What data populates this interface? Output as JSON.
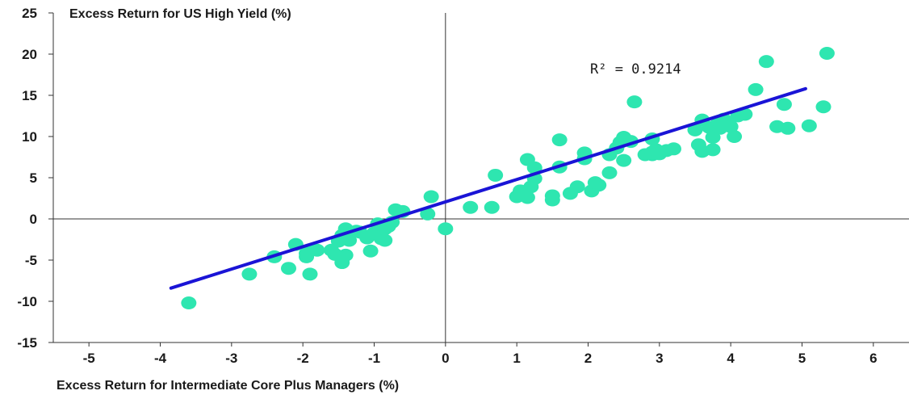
{
  "chart_data": {
    "type": "scatter",
    "title": "",
    "xlabel": "Excess Return for Intermediate Core Plus Managers (%)",
    "ylabel": "Excess Return for US High Yield (%)",
    "xlim": [
      -5.5,
      6.5
    ],
    "ylim": [
      -15,
      25
    ],
    "x_ticks": [
      -5,
      -4,
      -3,
      -2,
      -1,
      0,
      1,
      2,
      3,
      4,
      5,
      6
    ],
    "y_ticks": [
      25,
      20,
      15,
      10,
      5,
      0,
      -5,
      -10,
      -15
    ],
    "annotation": "R² = 0.9214",
    "colors": {
      "points": "#2ee6b0",
      "trendline": "#1a14d6",
      "axis": "#333333"
    },
    "trendline": {
      "x": [
        -3.85,
        5.05
      ],
      "y": [
        -8.4,
        15.8
      ]
    },
    "points": [
      [
        -3.6,
        -10.2
      ],
      [
        -2.75,
        -6.7
      ],
      [
        -2.4,
        -4.6
      ],
      [
        -2.2,
        -6.0
      ],
      [
        -2.1,
        -3.1
      ],
      [
        -1.95,
        -4.6
      ],
      [
        -1.9,
        -6.7
      ],
      [
        -1.9,
        -3.8
      ],
      [
        -1.8,
        -3.8
      ],
      [
        -1.95,
        -4.2
      ],
      [
        -1.6,
        -3.8
      ],
      [
        -1.55,
        -4.3
      ],
      [
        -1.5,
        -2.7
      ],
      [
        -1.45,
        -2.0
      ],
      [
        -1.4,
        -1.2
      ],
      [
        -1.4,
        -4.4
      ],
      [
        -1.45,
        -5.3
      ],
      [
        -1.35,
        -2.6
      ],
      [
        -1.25,
        -1.5
      ],
      [
        -1.2,
        -1.6
      ],
      [
        -1.1,
        -2.3
      ],
      [
        -1.05,
        -3.9
      ],
      [
        -1.0,
        -1.7
      ],
      [
        -0.95,
        -0.6
      ],
      [
        -0.9,
        -2.4
      ],
      [
        -0.85,
        -2.6
      ],
      [
        -0.85,
        -1.2
      ],
      [
        -0.8,
        -0.9
      ],
      [
        -0.75,
        -0.4
      ],
      [
        -0.7,
        1.1
      ],
      [
        -0.6,
        0.9
      ],
      [
        -0.25,
        0.6
      ],
      [
        -0.2,
        2.7
      ],
      [
        0.0,
        -1.2
      ],
      [
        0.35,
        1.4
      ],
      [
        0.65,
        1.4
      ],
      [
        0.7,
        5.3
      ],
      [
        1.0,
        2.7
      ],
      [
        1.05,
        3.4
      ],
      [
        1.15,
        2.6
      ],
      [
        1.15,
        7.2
      ],
      [
        1.2,
        3.9
      ],
      [
        1.25,
        6.2
      ],
      [
        1.25,
        4.9
      ],
      [
        1.5,
        2.3
      ],
      [
        1.5,
        2.8
      ],
      [
        1.6,
        9.6
      ],
      [
        1.6,
        6.3
      ],
      [
        1.75,
        3.1
      ],
      [
        1.85,
        3.9
      ],
      [
        1.95,
        8.0
      ],
      [
        1.95,
        7.3
      ],
      [
        2.05,
        3.4
      ],
      [
        2.1,
        4.4
      ],
      [
        2.15,
        4.1
      ],
      [
        2.3,
        7.8
      ],
      [
        2.3,
        5.6
      ],
      [
        2.4,
        8.6
      ],
      [
        2.45,
        9.3
      ],
      [
        2.5,
        9.9
      ],
      [
        2.5,
        7.1
      ],
      [
        2.6,
        9.4
      ],
      [
        2.65,
        14.2
      ],
      [
        2.8,
        7.8
      ],
      [
        2.9,
        9.7
      ],
      [
        2.9,
        8.1
      ],
      [
        2.9,
        7.8
      ],
      [
        2.95,
        8.4
      ],
      [
        3.0,
        7.9
      ],
      [
        3.1,
        8.3
      ],
      [
        3.2,
        8.5
      ],
      [
        3.5,
        10.8
      ],
      [
        3.55,
        9.0
      ],
      [
        3.6,
        8.2
      ],
      [
        3.6,
        12.0
      ],
      [
        3.7,
        11.1
      ],
      [
        3.75,
        8.4
      ],
      [
        3.75,
        9.9
      ],
      [
        3.8,
        11.4
      ],
      [
        3.85,
        11.0
      ],
      [
        3.9,
        12.1
      ],
      [
        3.95,
        11.5
      ],
      [
        4.0,
        11.2
      ],
      [
        4.05,
        10.0
      ],
      [
        4.1,
        12.5
      ],
      [
        4.2,
        12.7
      ],
      [
        4.35,
        15.7
      ],
      [
        4.5,
        19.1
      ],
      [
        4.65,
        11.2
      ],
      [
        4.75,
        13.9
      ],
      [
        4.8,
        11.0
      ],
      [
        5.1,
        11.3
      ],
      [
        5.3,
        13.6
      ],
      [
        5.35,
        20.1
      ]
    ]
  }
}
